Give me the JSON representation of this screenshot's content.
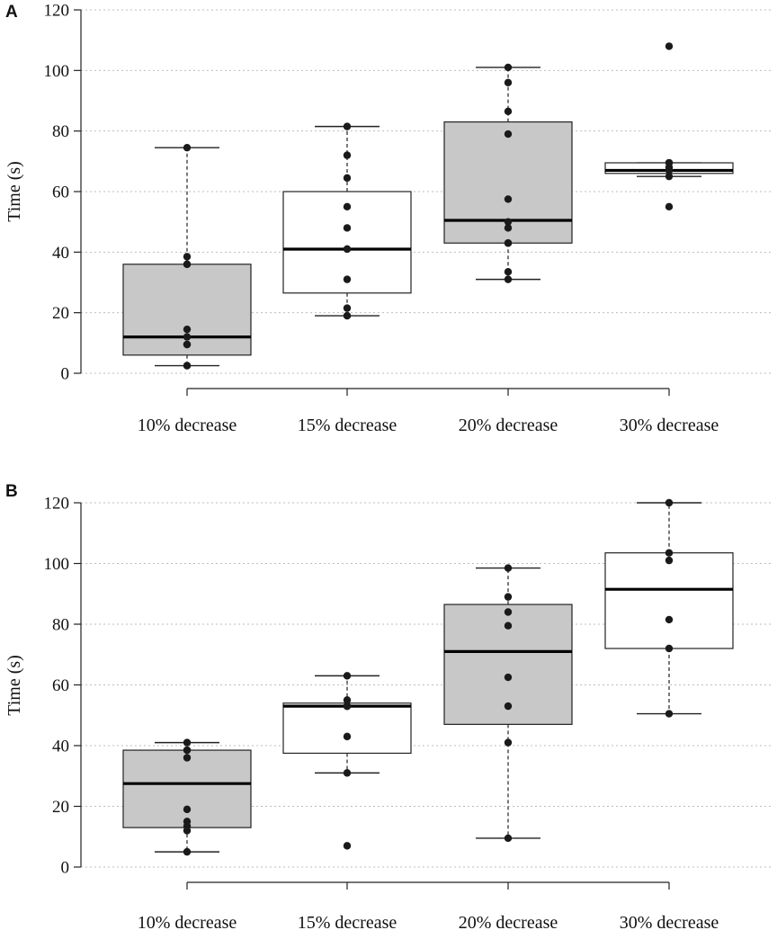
{
  "colors": {
    "box_fill_gray": "#c8c8c8",
    "box_fill_white": "#ffffff",
    "box_stroke": "#222222",
    "grid": "#bdbdbd",
    "point": "#1a1a1a",
    "axis": "#222222"
  },
  "chart_data": [
    {
      "panel": "A",
      "type": "boxplot",
      "ylabel": "Time (s)",
      "xlabel": "",
      "ylim": [
        0,
        120
      ],
      "yticks": [
        0,
        20,
        40,
        60,
        80,
        100,
        120
      ],
      "grid": "horizontal-dotted",
      "categories": [
        "10% decrease",
        "15% decrease",
        "20% decrease",
        "30% decrease"
      ],
      "boxes": [
        {
          "category": "10% decrease",
          "fill": "gray",
          "whisker_low": 2.5,
          "q1": 6.0,
          "median": 12.0,
          "q3": 36.0,
          "whisker_high": 74.5,
          "points": [
            2.5,
            2.5,
            9.5,
            9.5,
            12.0,
            14.5,
            36.0,
            36.0,
            38.5,
            74.5
          ]
        },
        {
          "category": "15% decrease",
          "fill": "white",
          "whisker_low": 19.0,
          "q1": 26.5,
          "median": 41.0,
          "q3": 60.0,
          "whisker_high": 81.5,
          "points": [
            19.0,
            19.0,
            21.5,
            31.0,
            41.0,
            41.0,
            48.0,
            55.0,
            64.5,
            72.0,
            81.5
          ]
        },
        {
          "category": "20% decrease",
          "fill": "gray",
          "whisker_low": 31.0,
          "q1": 43.0,
          "median": 50.5,
          "q3": 83.0,
          "whisker_high": 101.0,
          "points": [
            31.0,
            33.5,
            43.0,
            43.0,
            48.0,
            50.0,
            57.5,
            79.0,
            86.5,
            96.0,
            101.0
          ]
        },
        {
          "category": "30% decrease",
          "fill": "white",
          "whisker_low": 65.0,
          "q1": 66.0,
          "median": 67.0,
          "q3": 69.5,
          "whisker_high": 69.5,
          "points": [
            55.0,
            65.0,
            67.0,
            68.0,
            69.5,
            69.5,
            108.0
          ]
        }
      ]
    },
    {
      "panel": "B",
      "type": "boxplot",
      "ylabel": "Time (s)",
      "xlabel": "",
      "ylim": [
        0,
        120
      ],
      "yticks": [
        0,
        20,
        40,
        60,
        80,
        100,
        120
      ],
      "grid": "horizontal-dotted",
      "categories": [
        "10% decrease",
        "15% decrease",
        "20% decrease",
        "30% decrease"
      ],
      "boxes": [
        {
          "category": "10% decrease",
          "fill": "gray",
          "whisker_low": 5.0,
          "q1": 13.0,
          "median": 27.5,
          "q3": 38.5,
          "whisker_high": 41.0,
          "points": [
            5.0,
            12.0,
            13.5,
            15.0,
            19.0,
            36.0,
            38.5,
            38.5,
            41.0
          ]
        },
        {
          "category": "15% decrease",
          "fill": "white",
          "whisker_low": 31.0,
          "q1": 37.5,
          "median": 53.0,
          "q3": 54.0,
          "whisker_high": 63.0,
          "points": [
            7.0,
            31.0,
            43.0,
            53.0,
            53.0,
            53.0,
            55.0,
            63.0
          ]
        },
        {
          "category": "20% decrease",
          "fill": "gray",
          "whisker_low": 9.5,
          "q1": 47.0,
          "median": 71.0,
          "q3": 86.5,
          "whisker_high": 98.5,
          "points": [
            9.5,
            41.0,
            53.0,
            62.5,
            79.5,
            84.0,
            89.0,
            98.5
          ]
        },
        {
          "category": "30% decrease",
          "fill": "white",
          "whisker_low": 50.5,
          "q1": 72.0,
          "median": 91.5,
          "q3": 103.5,
          "whisker_high": 120.0,
          "points": [
            50.5,
            72.0,
            81.5,
            101.0,
            103.5,
            120.0
          ]
        }
      ]
    }
  ]
}
